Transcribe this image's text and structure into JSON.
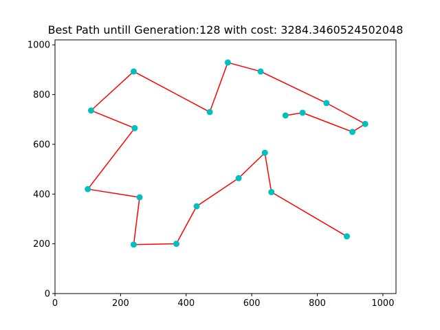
{
  "chart_data": {
    "type": "line",
    "title": "Best Path untill Generation:128 with cost: 3284.3460524502048",
    "xlabel": "",
    "ylabel": "",
    "xlim": [
      0,
      1040
    ],
    "ylim": [
      0,
      1020
    ],
    "x_ticks": [
      0,
      200,
      400,
      600,
      800,
      1000
    ],
    "y_ticks": [
      0,
      200,
      400,
      600,
      800,
      1000
    ],
    "grid": false,
    "line_color": "#ff0000",
    "marker_color": "#00bfbf",
    "series": [
      {
        "x": [
          890,
          660,
          640,
          560,
          432,
          370,
          240,
          258,
          100,
          243,
          110,
          240,
          472,
          527,
          627,
          828,
          946,
          907,
          755,
          703
        ],
        "y": [
          230,
          408,
          566,
          464,
          351,
          200,
          197,
          387,
          420,
          665,
          736,
          893,
          730,
          929,
          893,
          766,
          682,
          650,
          727,
          716
        ]
      }
    ]
  }
}
